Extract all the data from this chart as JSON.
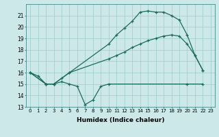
{
  "title": "",
  "xlabel": "Humidex (Indice chaleur)",
  "background_color": "#cce8e8",
  "grid_color": "#99cccc",
  "line_color": "#1a6b5a",
  "ylim": [
    13,
    22
  ],
  "xlim": [
    -0.5,
    23.5
  ],
  "yticks": [
    13,
    14,
    15,
    16,
    17,
    18,
    19,
    20,
    21
  ],
  "xticks": [
    0,
    1,
    2,
    3,
    4,
    5,
    6,
    7,
    8,
    9,
    10,
    11,
    12,
    13,
    14,
    15,
    16,
    17,
    18,
    19,
    20,
    21,
    22,
    23
  ],
  "line1_x": [
    0,
    1,
    2,
    3,
    4,
    5,
    6,
    7,
    8,
    9,
    10,
    20,
    22
  ],
  "line1_y": [
    16.0,
    15.7,
    15.0,
    15.0,
    15.2,
    15.0,
    14.8,
    13.2,
    13.6,
    14.8,
    15.0,
    15.0,
    15.0
  ],
  "line2_x": [
    0,
    2,
    3,
    4,
    5,
    10,
    11,
    12,
    13,
    14,
    15,
    16,
    17,
    18,
    19,
    20,
    21,
    22
  ],
  "line2_y": [
    16.0,
    15.0,
    15.0,
    15.5,
    16.0,
    17.2,
    17.5,
    17.8,
    18.2,
    18.5,
    18.8,
    19.0,
    19.2,
    19.3,
    19.2,
    18.5,
    17.5,
    16.2
  ],
  "line3_x": [
    0,
    2,
    3,
    5,
    10,
    11,
    12,
    13,
    14,
    15,
    16,
    17,
    18,
    19,
    20,
    21,
    22
  ],
  "line3_y": [
    16.0,
    15.0,
    15.0,
    16.0,
    18.5,
    19.3,
    19.9,
    20.5,
    21.3,
    21.4,
    21.3,
    21.3,
    21.0,
    20.6,
    19.3,
    17.5,
    16.2
  ]
}
